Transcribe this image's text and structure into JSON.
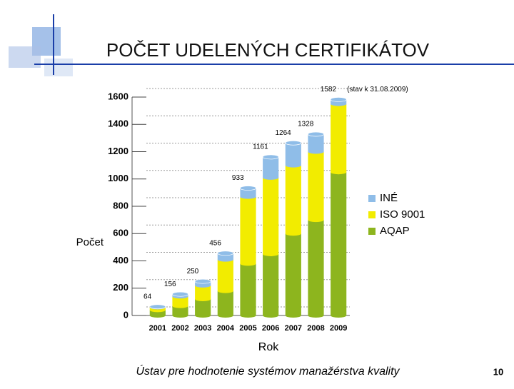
{
  "title": "POČET UDELENÝCH CERTIFIKÁTOV",
  "chart_data": {
    "type": "stacked-bar",
    "categories": [
      "2001",
      "2002",
      "2003",
      "2004",
      "2005",
      "2006",
      "2007",
      "2008",
      "2009"
    ],
    "series": [
      {
        "name": "AQAP",
        "color": "#8db51e",
        "values": [
          40,
          70,
          120,
          180,
          380,
          450,
          600,
          700,
          1050
        ]
      },
      {
        "name": "ISO 9001",
        "color": "#f2ec00",
        "values": [
          20,
          70,
          100,
          230,
          490,
          560,
          500,
          500,
          500
        ]
      },
      {
        "name": "INÉ",
        "color": "#8fbde8",
        "values": [
          4,
          16,
          30,
          46,
          63,
          151,
          164,
          128,
          32
        ]
      }
    ],
    "totals": [
      64,
      156,
      250,
      456,
      933,
      1161,
      1264,
      1328,
      1582
    ],
    "annotation": "(stav k 31.08.2009)",
    "ylim": [
      0,
      1600
    ],
    "yticks": [
      0,
      200,
      400,
      600,
      800,
      1000,
      1200,
      1400,
      1600
    ],
    "ylabel": "Počet",
    "xlabel": "Rok",
    "legend": "right"
  },
  "footer": "Ústav pre hodnotenie systémov manažérstva kvality",
  "page_number": "10"
}
